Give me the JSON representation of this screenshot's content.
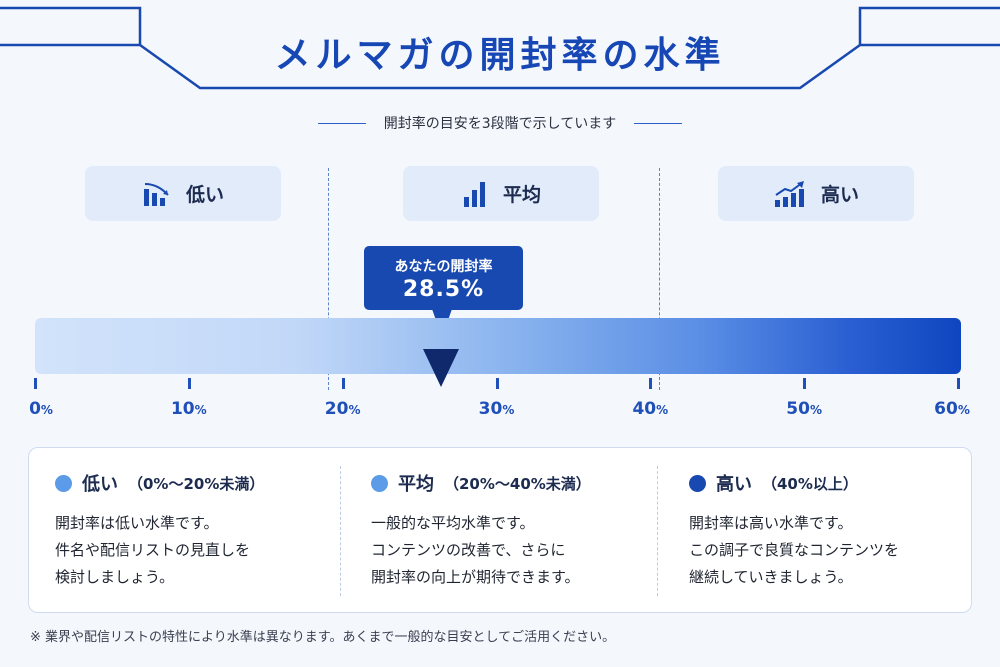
{
  "title": "メルマガの開封率の水準",
  "subtitle": "開封率の目安を3段階で示しています",
  "levels": [
    {
      "label": "低い",
      "icon": "bar-chart-declining-icon"
    },
    {
      "label": "平均",
      "icon": "bar-chart-rising-icon"
    },
    {
      "label": "高い",
      "icon": "trending-up-chart-icon"
    }
  ],
  "callout": {
    "label": "あなたの開封率",
    "value": "28.5%"
  },
  "scale": {
    "ticks": [
      {
        "num": "0",
        "unit": "%"
      },
      {
        "num": "10",
        "unit": "%"
      },
      {
        "num": "20",
        "unit": "%"
      },
      {
        "num": "30",
        "unit": "%"
      },
      {
        "num": "40",
        "unit": "%"
      },
      {
        "num": "50",
        "unit": "%"
      },
      {
        "num": "60",
        "unit": "%"
      }
    ]
  },
  "descriptions": [
    {
      "name": "低い",
      "range": "（0%〜20%未満）",
      "color": "#5b9be8",
      "lines": [
        "開封率は低い水準です。",
        "件名や配信リストの見直しを",
        "検討しましょう。"
      ]
    },
    {
      "name": "平均",
      "range": "（20%〜40%未満）",
      "color": "#5b9be8",
      "lines": [
        "一般的な平均水準です。",
        "コンテンツの改善で、さらに",
        "開封率の向上が期待できます。"
      ]
    },
    {
      "name": "高い",
      "range": "（40%以上）",
      "color": "#1849b0",
      "lines": [
        "開封率は高い水準です。",
        "この調子で良質なコンテンツを",
        "継続していきましょう。"
      ]
    }
  ],
  "footnote": "※ 業界や配信リストの特性により水準は異なります。あくまで一般的な目安としてご活用ください。",
  "colors": {
    "accent": "#1849b0",
    "bar_start": "#d2e3fb",
    "bar_end": "#0f46bf"
  }
}
